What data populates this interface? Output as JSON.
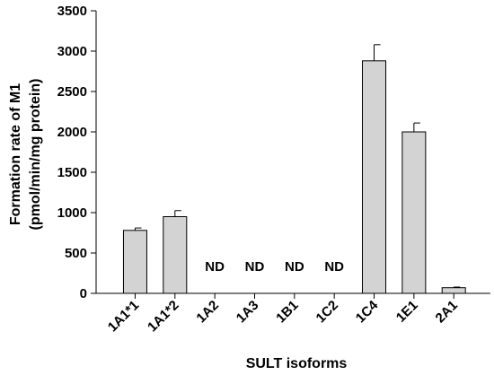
{
  "chart_data": {
    "type": "bar",
    "categories": [
      "1A1*1",
      "1A1*2",
      "1A2",
      "1A3",
      "1B1",
      "1C2",
      "1C4",
      "1E1",
      "2A1"
    ],
    "values": [
      780,
      950,
      null,
      null,
      null,
      null,
      2880,
      2000,
      70
    ],
    "errors": [
      30,
      75,
      null,
      null,
      null,
      null,
      200,
      110,
      8
    ],
    "annotations": [
      null,
      null,
      "ND",
      "ND",
      "ND",
      "ND",
      null,
      null,
      null
    ],
    "xlabel": "SULT isoforms",
    "ylabel_line1": "Formation rate of M1",
    "ylabel_line2": "(pmol/min/mg protein)",
    "ylim": [
      0,
      3500
    ],
    "yticks": [
      "0",
      "500",
      "1000",
      "1500",
      "2000",
      "2500",
      "3000",
      "3500"
    ],
    "bar_color": "#d3d3d3",
    "grid": false,
    "legend": "none"
  }
}
